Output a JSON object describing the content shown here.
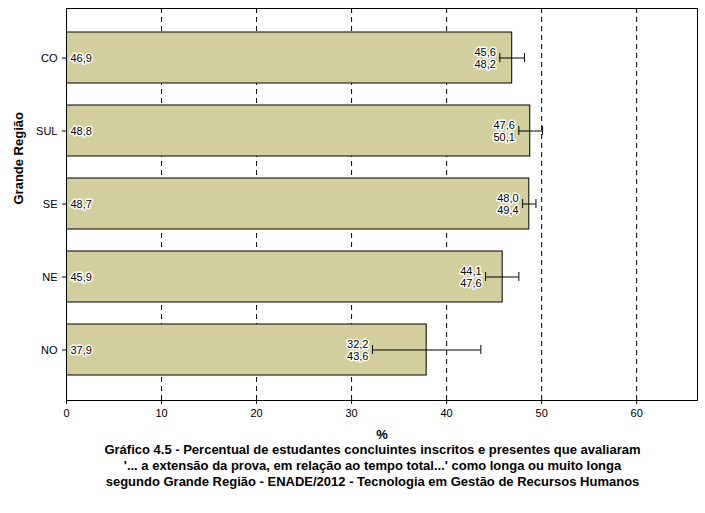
{
  "chart_data": {
    "type": "bar",
    "orientation": "horizontal",
    "title": "Gráfico 4.5 - Percentual de estudantes concluintes inscritos e presentes que avaliaram\n'... a extensão da prova, em relação ao tempo total...' como longa ou muito longa\nsegundo Grande Região - ENADE/2012 - Tecnologia em Gestão de Recursos Humanos",
    "x_label": "%",
    "y_label": "Grande Região",
    "categories": [
      "CO",
      "SUL",
      "SE",
      "NE",
      "NO"
    ],
    "values": [
      46.9,
      48.8,
      48.7,
      45.9,
      37.9
    ],
    "value_labels": [
      "46,9",
      "48,8",
      "48,7",
      "45,9",
      "37,9"
    ],
    "error_low": [
      45.6,
      47.6,
      48.0,
      44.1,
      32.2
    ],
    "error_low_labels": [
      "45,6",
      "47,6",
      "48,0",
      "44,1",
      "32,2"
    ],
    "error_high": [
      48.2,
      50.1,
      49.4,
      47.6,
      43.6
    ],
    "error_high_labels": [
      "48,2",
      "50,1",
      "49,4",
      "47,6",
      "43,6"
    ],
    "color": "#d3ce9d",
    "xlim": [
      0,
      66.4
    ],
    "xticks": [
      0,
      10,
      20,
      30,
      40,
      50,
      60
    ],
    "grid": true,
    "data_labels": true
  }
}
